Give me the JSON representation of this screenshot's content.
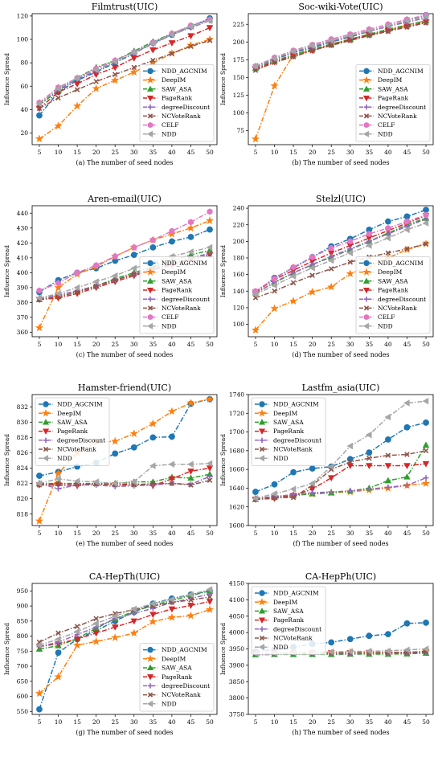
{
  "xlabel": "The number of seed nodes",
  "ylabel": "Influence Spread",
  "x": [
    5,
    10,
    15,
    20,
    25,
    30,
    35,
    40,
    45,
    50
  ],
  "styles": {
    "NDD_AGCNIM": {
      "color": "#1f77b4",
      "marker": "circle"
    },
    "DeepIM": {
      "color": "#ff7f0e",
      "marker": "star"
    },
    "SAW_ASA": {
      "color": "#2ca02c",
      "marker": "triangle-up"
    },
    "PageRank": {
      "color": "#d62728",
      "marker": "triangle-down"
    },
    "degreeDiscount": {
      "color": "#9467bd",
      "marker": "plus"
    },
    "NCVoteRank": {
      "color": "#8c564b",
      "marker": "x"
    },
    "CELF": {
      "color": "#e377c2",
      "marker": "hexagon"
    },
    "NDD": {
      "color": "#a6a6a6",
      "marker": "triangle-left"
    }
  },
  "chart_data": [
    {
      "type": "line",
      "title": "Filmtrust(UIC)",
      "caption": "(a) The number of seed nodes",
      "ylim": [
        10,
        122
      ],
      "yticks": [
        20,
        40,
        60,
        80,
        100,
        120
      ],
      "legend": "bottom-right",
      "series": [
        {
          "name": "NDD_AGCNIM",
          "values": [
            35,
            55,
            65,
            72,
            80,
            88,
            97,
            104,
            111,
            118
          ]
        },
        {
          "name": "DeepIM",
          "values": [
            15,
            26,
            43,
            58,
            65,
            72,
            80,
            88,
            95,
            100
          ]
        },
        {
          "name": "SAW_ASA",
          "values": [
            44,
            56,
            67,
            76,
            82,
            90,
            98,
            105,
            111,
            117
          ]
        },
        {
          "name": "PageRank",
          "values": [
            41,
            55,
            62,
            70,
            76,
            84,
            91,
            97,
            103,
            110
          ]
        },
        {
          "name": "degreeDiscount",
          "values": [
            45,
            57,
            66,
            73,
            81,
            89,
            96,
            104,
            110,
            116
          ]
        },
        {
          "name": "NCVoteRank",
          "values": [
            41,
            50,
            57,
            64,
            70,
            76,
            82,
            88,
            94,
            99
          ]
        },
        {
          "name": "CELF",
          "values": [
            46,
            59,
            67,
            75,
            82,
            89,
            97,
            105,
            112,
            117
          ]
        },
        {
          "name": "NDD",
          "values": [
            45,
            58,
            67,
            74,
            81,
            89,
            97,
            104,
            111,
            116
          ]
        }
      ]
    },
    {
      "type": "line",
      "title": "Soc-wiki-Vote(UIC)",
      "caption": "(b) The number of seed nodes",
      "ylim": [
        55,
        240
      ],
      "yticks": [
        75,
        100,
        125,
        150,
        175,
        200,
        225
      ],
      "legend": "bottom-right",
      "series": [
        {
          "name": "NDD_AGCNIM",
          "values": [
            165,
            175,
            185,
            192,
            200,
            207,
            215,
            222,
            230,
            238
          ]
        },
        {
          "name": "DeepIM",
          "values": [
            63,
            138,
            182,
            188,
            196,
            204,
            210,
            216,
            224,
            230
          ]
        },
        {
          "name": "SAW_ASA",
          "values": [
            163,
            173,
            182,
            190,
            197,
            204,
            211,
            218,
            224,
            230
          ]
        },
        {
          "name": "PageRank",
          "values": [
            162,
            172,
            180,
            188,
            196,
            203,
            210,
            216,
            222,
            228
          ]
        },
        {
          "name": "degreeDiscount",
          "values": [
            165,
            176,
            186,
            193,
            201,
            208,
            215,
            222,
            228,
            234
          ]
        },
        {
          "name": "NCVoteRank",
          "values": [
            160,
            171,
            179,
            188,
            195,
            202,
            209,
            215,
            221,
            227
          ]
        },
        {
          "name": "CELF",
          "values": [
            166,
            178,
            188,
            196,
            204,
            211,
            218,
            225,
            232,
            238
          ]
        },
        {
          "name": "NDD",
          "values": [
            166,
            177,
            187,
            195,
            202,
            209,
            216,
            223,
            230,
            236
          ]
        }
      ]
    },
    {
      "type": "line",
      "title": "Aren-email(UIC)",
      "caption": "(c) The number of seed nodes",
      "ylim": [
        357,
        445
      ],
      "yticks": [
        360,
        370,
        380,
        390,
        400,
        410,
        420,
        430,
        440
      ],
      "legend": "bottom-right",
      "series": [
        {
          "name": "NDD_AGCNIM",
          "values": [
            387,
            395,
            400,
            403,
            408,
            412,
            417,
            421,
            424,
            429
          ]
        },
        {
          "name": "DeepIM",
          "values": [
            363,
            390,
            399,
            404,
            411,
            417,
            422,
            426,
            430,
            435
          ]
        },
        {
          "name": "SAW_ASA",
          "values": [
            382,
            384,
            387,
            391,
            396,
            400,
            404,
            408,
            412,
            415
          ]
        },
        {
          "name": "PageRank",
          "values": [
            382,
            383,
            386,
            390,
            394,
            398,
            402,
            405,
            409,
            412
          ]
        },
        {
          "name": "degreeDiscount",
          "values": [
            383,
            385,
            388,
            391,
            395,
            399,
            403,
            406,
            410,
            413
          ]
        },
        {
          "name": "NCVoteRank",
          "values": [
            382,
            384,
            387,
            391,
            395,
            399,
            402,
            406,
            409,
            412
          ]
        },
        {
          "name": "CELF",
          "values": [
            388,
            393,
            400,
            405,
            411,
            417,
            422,
            428,
            434,
            441
          ]
        },
        {
          "name": "NDD",
          "values": [
            383,
            386,
            390,
            394,
            398,
            403,
            407,
            411,
            414,
            417
          ]
        }
      ]
    },
    {
      "type": "line",
      "title": "Stelzl(UIC)",
      "caption": "(d) The number of seed nodes",
      "ylim": [
        85,
        243
      ],
      "yticks": [
        100,
        120,
        140,
        160,
        180,
        200,
        220,
        240
      ],
      "legend": "bottom-right",
      "series": [
        {
          "name": "NDD_AGCNIM",
          "values": [
            139,
            156,
            168,
            181,
            194,
            203,
            214,
            224,
            230,
            238
          ]
        },
        {
          "name": "DeepIM",
          "values": [
            93,
            119,
            128,
            139,
            145,
            161,
            170,
            180,
            190,
            197
          ]
        },
        {
          "name": "SAW_ASA",
          "values": [
            138,
            150,
            162,
            172,
            181,
            190,
            200,
            210,
            220,
            228
          ]
        },
        {
          "name": "PageRank",
          "values": [
            139,
            154,
            165,
            176,
            186,
            195,
            204,
            213,
            222,
            231
          ]
        },
        {
          "name": "degreeDiscount",
          "values": [
            137,
            151,
            162,
            172,
            182,
            191,
            200,
            209,
            218,
            227
          ]
        },
        {
          "name": "NCVoteRank",
          "values": [
            132,
            140,
            150,
            159,
            167,
            175,
            181,
            186,
            191,
            197
          ]
        },
        {
          "name": "CELF",
          "values": [
            140,
            155,
            169,
            181,
            192,
            200,
            209,
            216,
            224,
            232
          ]
        },
        {
          "name": "NDD",
          "values": [
            136,
            147,
            158,
            168,
            177,
            186,
            195,
            204,
            214,
            222
          ]
        }
      ]
    },
    {
      "type": "line",
      "title": "Hamster-friend(UIC)",
      "caption": "(e) The number of seed nodes",
      "ylim": [
        816.5,
        833.6
      ],
      "yticks": [
        818,
        820,
        822,
        824,
        826,
        828,
        830,
        832
      ],
      "legend": "top-left",
      "series": [
        {
          "name": "NDD_AGCNIM",
          "values": [
            823.0,
            823.5,
            824.2,
            824.7,
            825.9,
            826.7,
            828.0,
            828.1,
            832.4,
            833.0
          ]
        },
        {
          "name": "DeepIM",
          "values": [
            817.1,
            823.3,
            826.0,
            827.4,
            827.5,
            828.5,
            829.8,
            831.4,
            832.5,
            833.0
          ]
        },
        {
          "name": "SAW_ASA",
          "values": [
            822.0,
            822.0,
            822.0,
            822.0,
            822.0,
            822.2,
            822.2,
            822.8,
            822.7,
            823.2
          ]
        },
        {
          "name": "PageRank",
          "values": [
            821.8,
            821.8,
            821.7,
            822.0,
            821.8,
            822.0,
            821.7,
            822.6,
            823.6,
            824.0
          ]
        },
        {
          "name": "degreeDiscount",
          "values": [
            822.0,
            821.3,
            821.8,
            821.8,
            821.6,
            821.7,
            821.8,
            822.0,
            821.9,
            822.9
          ]
        },
        {
          "name": "NCVoteRank",
          "values": [
            821.8,
            822.0,
            821.9,
            821.9,
            821.8,
            821.8,
            822.0,
            822.0,
            821.8,
            822.4
          ]
        },
        {
          "name": "NDD",
          "values": [
            822.0,
            822.6,
            822.3,
            822.2,
            822.0,
            822.2,
            824.3,
            824.5,
            824.5,
            824.6
          ]
        }
      ]
    },
    {
      "type": "line",
      "title": "Lastfm_asia(UIC)",
      "caption": "(f) The number of seed nodes",
      "ylim": [
        1600,
        1740
      ],
      "yticks": [
        1600,
        1620,
        1640,
        1660,
        1680,
        1700,
        1720,
        1740
      ],
      "legend": "top-left",
      "series": [
        {
          "name": "NDD_AGCNIM",
          "values": [
            1636,
            1644,
            1657,
            1661,
            1663,
            1671,
            1678,
            1692,
            1705,
            1710
          ]
        },
        {
          "name": "DeepIM",
          "values": [
            1629,
            1631,
            1633,
            1634,
            1635,
            1636,
            1638,
            1640,
            1643,
            1645
          ]
        },
        {
          "name": "SAW_ASA",
          "values": [
            1628,
            1630,
            1632,
            1634,
            1635,
            1637,
            1640,
            1648,
            1652,
            1686
          ]
        },
        {
          "name": "PageRank",
          "values": [
            1628,
            1629,
            1632,
            1639,
            1651,
            1664,
            1664,
            1664,
            1664,
            1666
          ]
        },
        {
          "name": "degreeDiscount",
          "values": [
            1629,
            1631,
            1633,
            1635,
            1636,
            1637,
            1639,
            1641,
            1643,
            1651
          ]
        },
        {
          "name": "NCVoteRank",
          "values": [
            1628,
            1630,
            1630,
            1643,
            1660,
            1668,
            1672,
            1675,
            1676,
            1680
          ]
        },
        {
          "name": "NDD",
          "values": [
            1629,
            1634,
            1639,
            1645,
            1663,
            1685,
            1697,
            1716,
            1731,
            1733
          ]
        }
      ]
    },
    {
      "type": "line",
      "title": "CA-HepTh(UIC)",
      "caption": "(g) The number of seed nodes",
      "ylim": [
        540,
        975
      ],
      "yticks": [
        550,
        600,
        650,
        700,
        750,
        800,
        850,
        900,
        950
      ],
      "legend": "bottom-right",
      "series": [
        {
          "name": "NDD_AGCNIM",
          "values": [
            557,
            745,
            790,
            818,
            850,
            880,
            908,
            925,
            938,
            950
          ]
        },
        {
          "name": "DeepIM",
          "values": [
            610,
            665,
            770,
            782,
            795,
            810,
            848,
            862,
            868,
            888
          ]
        },
        {
          "name": "SAW_ASA",
          "values": [
            757,
            768,
            792,
            826,
            858,
            882,
            902,
            918,
            935,
            950
          ]
        },
        {
          "name": "PageRank",
          "values": [
            765,
            775,
            790,
            810,
            830,
            850,
            872,
            890,
            902,
            915
          ]
        },
        {
          "name": "degreeDiscount",
          "values": [
            765,
            780,
            805,
            830,
            858,
            876,
            892,
            912,
            925,
            940
          ]
        },
        {
          "name": "NCVoteRank",
          "values": [
            780,
            810,
            832,
            858,
            875,
            888,
            900,
            912,
            920,
            930
          ]
        },
        {
          "name": "NDD",
          "values": [
            770,
            790,
            815,
            842,
            866,
            890,
            908,
            922,
            938,
            955
          ]
        }
      ]
    },
    {
      "type": "line",
      "title": "CA-HepPh(UIC)",
      "caption": "(h) The number of seed nodes",
      "ylim": [
        3750,
        4150
      ],
      "yticks": [
        3750,
        3800,
        3850,
        3900,
        3950,
        4000,
        4050,
        4100,
        4150
      ],
      "legend": "top-left",
      "series": [
        {
          "name": "NDD_AGCNIM",
          "values": [
            3942,
            3948,
            3956,
            3965,
            3970,
            3980,
            3990,
            3995,
            4028,
            4030
          ]
        },
        {
          "name": "DeepIM",
          "values": [
            3935,
            3935,
            3936,
            3937,
            3936,
            3940,
            3938,
            3938,
            3938,
            3942
          ]
        },
        {
          "name": "SAW_ASA",
          "values": [
            3932,
            3933,
            3933,
            3933,
            3933,
            3934,
            3934,
            3934,
            3935,
            3937
          ]
        },
        {
          "name": "PageRank",
          "values": [
            3937,
            3938,
            3938,
            3938,
            3938,
            3938,
            3939,
            3939,
            3940,
            3942
          ]
        },
        {
          "name": "degreeDiscount",
          "values": [
            3933,
            3934,
            3935,
            3935,
            3935,
            3935,
            3936,
            3937,
            3938,
            3940
          ]
        },
        {
          "name": "NCVoteRank",
          "values": [
            3936,
            3937,
            3937,
            3937,
            3937,
            3938,
            3938,
            3939,
            3939,
            3941
          ]
        },
        {
          "name": "NDD",
          "values": [
            3936,
            3938,
            3939,
            3940,
            3941,
            3942,
            3943,
            3944,
            3947,
            3950
          ]
        }
      ]
    }
  ]
}
